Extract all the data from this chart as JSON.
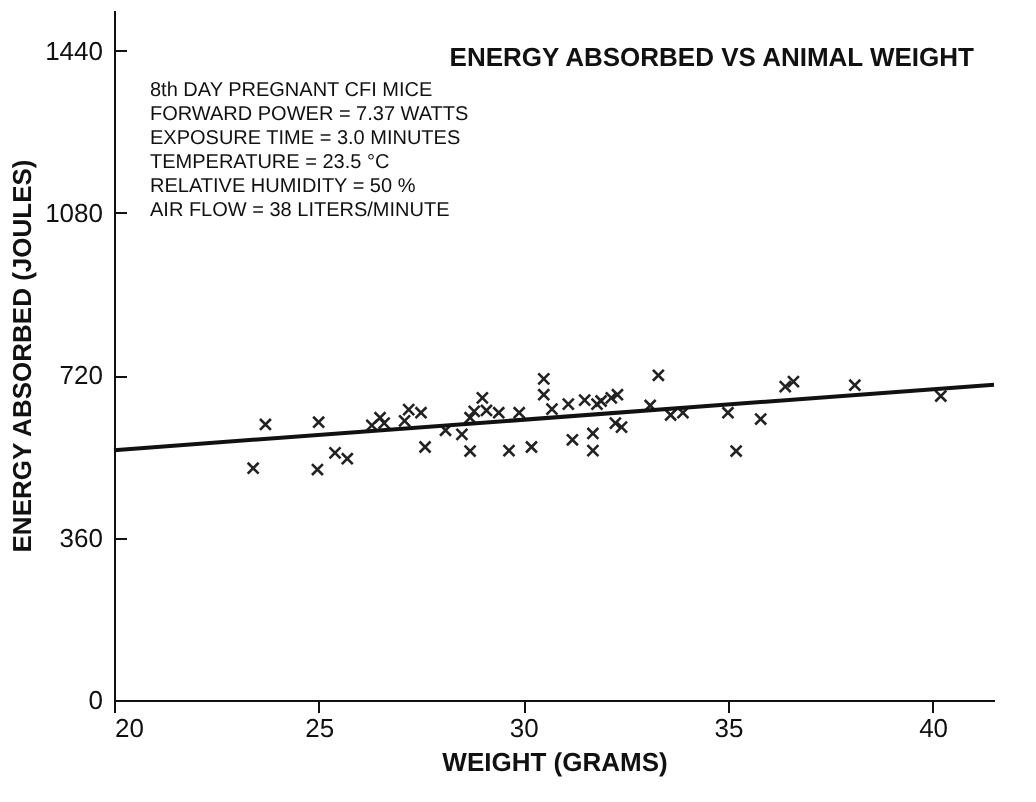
{
  "chart_data": {
    "type": "scatter",
    "title": "ENERGY ABSORBED VS ANIMAL WEIGHT",
    "xlabel": "WEIGHT (GRAMS)",
    "ylabel": "ENERGY ABSORBED (JOULES)",
    "annotations": [
      "8th DAY PREGNANT CFI MICE",
      "FORWARD POWER = 7.37 WATTS",
      "EXPOSURE TIME = 3.0 MINUTES",
      "TEMPERATURE = 23.5 °C",
      "RELATIVE HUMIDITY = 50 %",
      "AIR FLOW = 38 LITERS/MINUTE"
    ],
    "xlim": [
      20,
      41.5
    ],
    "xticks": [
      20,
      25,
      30,
      35,
      40
    ],
    "ylim": [
      0,
      1530
    ],
    "yticks": [
      0,
      360,
      720,
      1080,
      1440
    ],
    "grid": false,
    "series": [
      {
        "marker": "cross",
        "color": "#222222",
        "x": [
          23.4,
          23.7,
          24.97,
          25.0,
          25.4,
          25.7,
          26.3,
          26.5,
          26.6,
          27.1,
          27.2,
          27.5,
          27.6,
          28.1,
          28.5,
          28.7,
          28.7,
          28.8,
          29.0,
          29.1,
          29.4,
          29.65,
          29.9,
          30.2,
          30.5,
          30.5,
          30.7,
          31.1,
          31.2,
          31.5,
          31.7,
          31.7,
          31.8,
          31.9,
          32.15,
          32.3,
          32.25,
          32.4,
          33.1,
          33.3,
          33.6,
          33.9,
          35.0,
          35.2,
          35.8,
          36.4,
          36.6,
          38.1,
          40.2
        ],
        "values": [
          514,
          611,
          511,
          616,
          548,
          535,
          609,
          626,
          614,
          619,
          644,
          637,
          561,
          598,
          589,
          552,
          626,
          640,
          670,
          642,
          637,
          553,
          637,
          561,
          712,
          677,
          645,
          656,
          577,
          665,
          591,
          553,
          656,
          663,
          670,
          677,
          614,
          605,
          653,
          720,
          632,
          637,
          637,
          552,
          623,
          695,
          706,
          698,
          674
        ]
      },
      {
        "type": "line",
        "color": "#111111",
        "x": [
          20,
          41.5
        ],
        "values": [
          554,
          699
        ]
      }
    ]
  }
}
